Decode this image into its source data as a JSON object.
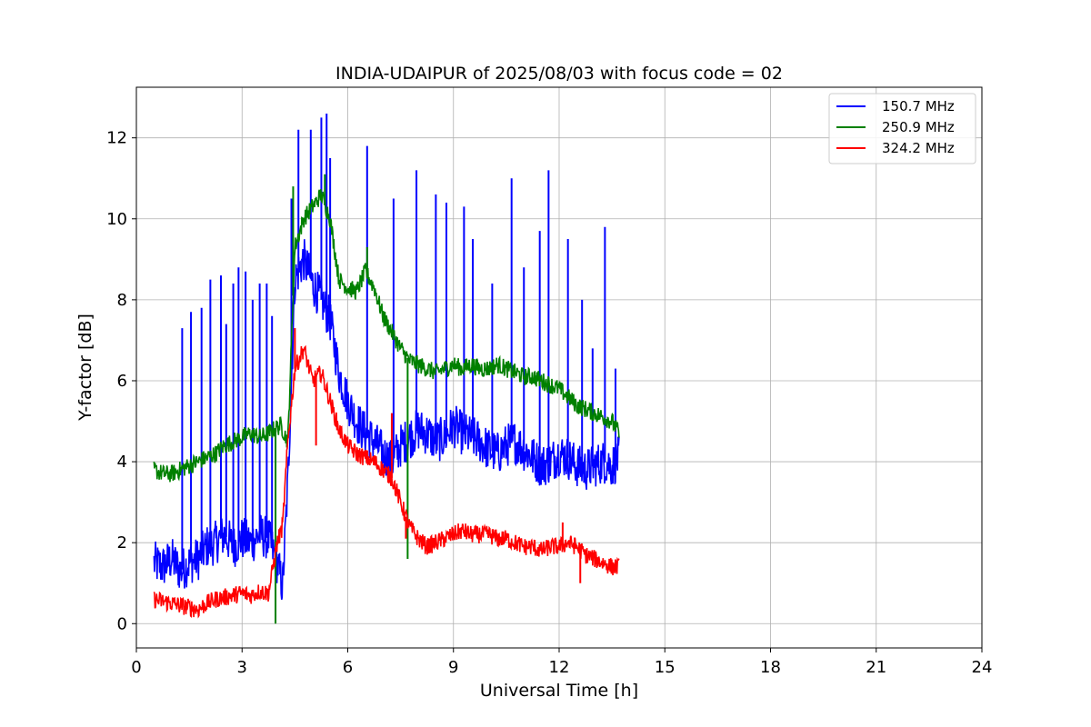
{
  "chart_data": {
    "type": "line",
    "title": "INDIA-UDAIPUR of 2025/08/03 with focus code = 02",
    "xlabel": "Universal Time [h]",
    "ylabel": "Y-factor [dB]",
    "xlim": [
      0,
      24
    ],
    "ylim": [
      -0.6,
      13.25
    ],
    "xticks": [
      0,
      3,
      6,
      9,
      12,
      15,
      18,
      21,
      24
    ],
    "yticks": [
      0,
      2,
      4,
      6,
      8,
      10,
      12
    ],
    "grid": true,
    "legend_position": "top-right",
    "series": [
      {
        "name": "150.7 MHz",
        "color": "#0000ff",
        "x": [
          0.5,
          0.75,
          1.0,
          1.25,
          1.5,
          1.75,
          2.0,
          2.25,
          2.5,
          2.75,
          3.0,
          3.25,
          3.5,
          3.75,
          4.0,
          4.15,
          4.3,
          4.5,
          4.75,
          5.0,
          5.25,
          5.5,
          5.75,
          6.0,
          6.25,
          6.5,
          6.75,
          7.0,
          7.25,
          7.5,
          7.75,
          8.0,
          8.25,
          8.5,
          8.75,
          9.0,
          9.25,
          9.5,
          9.75,
          10.0,
          10.25,
          10.5,
          10.75,
          11.0,
          11.25,
          11.5,
          11.75,
          12.0,
          12.25,
          12.5,
          12.75,
          13.0,
          13.25,
          13.5,
          13.7
        ],
        "values": [
          1.5,
          1.4,
          1.6,
          1.3,
          1.5,
          1.6,
          1.9,
          2.0,
          2.2,
          1.9,
          2.1,
          2.0,
          2.2,
          2.1,
          1.5,
          0.9,
          3.5,
          8.5,
          9.0,
          8.4,
          8.0,
          7.5,
          6.2,
          5.5,
          5.0,
          4.7,
          4.5,
          4.2,
          4.0,
          4.4,
          4.6,
          4.8,
          4.7,
          4.5,
          4.6,
          4.9,
          4.7,
          4.6,
          4.5,
          4.3,
          4.2,
          4.4,
          4.5,
          4.3,
          4.1,
          3.9,
          4.0,
          4.2,
          4.1,
          3.9,
          3.8,
          3.9,
          4.0,
          3.9,
          4.1
        ],
        "spikes": [
          [
            1.3,
            7.3
          ],
          [
            1.55,
            7.7
          ],
          [
            1.85,
            7.8
          ],
          [
            2.1,
            8.5
          ],
          [
            2.4,
            8.6
          ],
          [
            2.55,
            7.4
          ],
          [
            2.75,
            8.4
          ],
          [
            2.9,
            8.8
          ],
          [
            3.1,
            8.7
          ],
          [
            3.3,
            8.0
          ],
          [
            3.5,
            8.4
          ],
          [
            3.7,
            8.4
          ],
          [
            3.85,
            7.6
          ],
          [
            4.4,
            10.5
          ],
          [
            4.6,
            12.2
          ],
          [
            4.95,
            12.2
          ],
          [
            5.25,
            12.5
          ],
          [
            5.4,
            12.6
          ],
          [
            5.5,
            11.5
          ],
          [
            6.55,
            11.8
          ],
          [
            7.3,
            10.5
          ],
          [
            7.95,
            11.2
          ],
          [
            8.5,
            10.6
          ],
          [
            8.8,
            10.4
          ],
          [
            9.3,
            10.3
          ],
          [
            9.55,
            9.5
          ],
          [
            10.1,
            8.4
          ],
          [
            10.65,
            11.0
          ],
          [
            11.0,
            8.8
          ],
          [
            11.45,
            9.7
          ],
          [
            11.7,
            11.2
          ],
          [
            12.25,
            9.5
          ],
          [
            12.65,
            8.0
          ],
          [
            12.95,
            6.8
          ],
          [
            13.3,
            9.8
          ],
          [
            13.6,
            6.3
          ]
        ]
      },
      {
        "name": "250.9 MHz",
        "color": "#008000",
        "x": [
          0.5,
          0.75,
          1.0,
          1.25,
          1.5,
          1.75,
          2.0,
          2.25,
          2.5,
          2.75,
          3.0,
          3.25,
          3.5,
          3.75,
          3.9,
          4.1,
          4.3,
          4.5,
          4.75,
          5.0,
          5.25,
          5.5,
          5.75,
          6.0,
          6.25,
          6.5,
          6.75,
          7.0,
          7.25,
          7.5,
          7.75,
          8.0,
          8.25,
          8.5,
          8.75,
          9.0,
          9.25,
          9.5,
          9.75,
          10.0,
          10.25,
          10.5,
          10.75,
          11.0,
          11.25,
          11.5,
          11.75,
          12.0,
          12.25,
          12.5,
          12.75,
          13.0,
          13.25,
          13.5,
          13.7
        ],
        "values": [
          3.8,
          3.7,
          3.7,
          3.8,
          3.9,
          4.0,
          4.1,
          4.2,
          4.4,
          4.5,
          4.6,
          4.7,
          4.6,
          4.7,
          4.8,
          4.9,
          4.5,
          9.3,
          10.0,
          10.3,
          10.6,
          10.0,
          8.5,
          8.3,
          8.2,
          8.7,
          8.3,
          7.6,
          7.2,
          6.8,
          6.5,
          6.4,
          6.3,
          6.2,
          6.3,
          6.4,
          6.3,
          6.4,
          6.3,
          6.3,
          6.4,
          6.3,
          6.2,
          6.1,
          6.1,
          6.0,
          5.9,
          5.8,
          5.6,
          5.4,
          5.3,
          5.2,
          5.1,
          5.0,
          4.7
        ],
        "spikes": [
          [
            3.95,
            0.0
          ],
          [
            4.45,
            10.8
          ],
          [
            5.35,
            11.1
          ],
          [
            6.55,
            9.3
          ],
          [
            7.7,
            1.6
          ]
        ]
      },
      {
        "name": "324.2 MHz",
        "color": "#ff0000",
        "x": [
          0.5,
          0.75,
          1.0,
          1.25,
          1.5,
          1.75,
          2.0,
          2.25,
          2.5,
          2.75,
          3.0,
          3.25,
          3.5,
          3.75,
          4.0,
          4.15,
          4.3,
          4.5,
          4.75,
          5.0,
          5.25,
          5.5,
          5.75,
          6.0,
          6.25,
          6.5,
          6.75,
          7.0,
          7.25,
          7.5,
          7.75,
          8.0,
          8.25,
          8.5,
          8.75,
          9.0,
          9.25,
          9.5,
          9.75,
          10.0,
          10.25,
          10.5,
          10.75,
          11.0,
          11.25,
          11.5,
          11.75,
          12.0,
          12.25,
          12.5,
          12.75,
          13.0,
          13.25,
          13.5,
          13.7
        ],
        "values": [
          0.6,
          0.55,
          0.5,
          0.45,
          0.4,
          0.35,
          0.5,
          0.6,
          0.65,
          0.7,
          0.75,
          0.7,
          0.8,
          0.75,
          2.0,
          2.4,
          4.5,
          6.3,
          6.8,
          6.0,
          6.2,
          5.5,
          4.8,
          4.4,
          4.2,
          4.1,
          4.0,
          3.8,
          3.6,
          3.0,
          2.4,
          2.1,
          1.9,
          2.0,
          2.1,
          2.2,
          2.3,
          2.2,
          2.2,
          2.2,
          2.1,
          2.1,
          2.0,
          1.9,
          1.9,
          1.8,
          1.9,
          1.9,
          2.0,
          1.9,
          1.7,
          1.6,
          1.5,
          1.4,
          1.4
        ],
        "spikes": [
          [
            4.5,
            7.3
          ],
          [
            5.1,
            4.4
          ],
          [
            7.25,
            5.2
          ],
          [
            7.65,
            2.1
          ],
          [
            12.1,
            2.5
          ],
          [
            12.6,
            1.0
          ]
        ]
      }
    ]
  }
}
